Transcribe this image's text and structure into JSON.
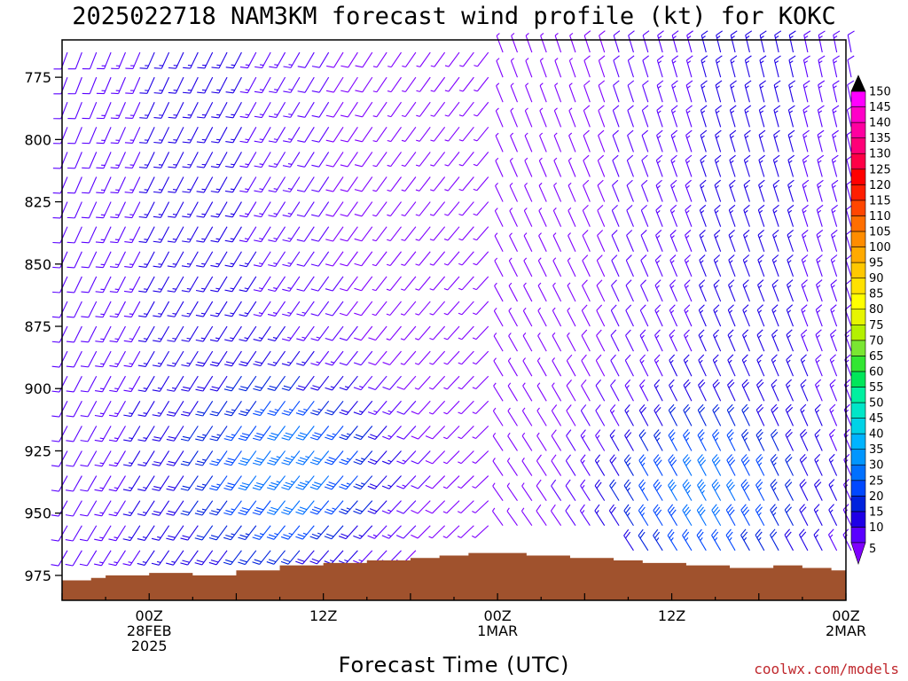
{
  "chart_data": {
    "type": "wind-barb profile (time-height cross section)",
    "title": "2025022718 NAM3KM forecast wind profile (kt) for KOKC",
    "xlabel": "Forecast Time (UTC)",
    "ylabel": "",
    "credit": "coolwx.com/models",
    "y_axis": {
      "unit": "hPa",
      "reversed": true,
      "range": [
        760,
        985
      ],
      "ticks": [
        775,
        800,
        825,
        850,
        875,
        900,
        925,
        950,
        975
      ],
      "tick_labels": [
        "775",
        "800",
        "825",
        "850",
        "875",
        "900",
        "925",
        "950",
        "975"
      ]
    },
    "x_axis": {
      "unit": "hours after 2025-02-27 18Z",
      "range": [
        0,
        54
      ],
      "ticks": [
        {
          "hour": 6,
          "label1": "00Z",
          "label2": "28FEB",
          "label3": "2025"
        },
        {
          "hour": 18,
          "label1": "12Z",
          "label2": "",
          "label3": ""
        },
        {
          "hour": 30,
          "label1": "00Z",
          "label2": "1MAR",
          "label3": ""
        },
        {
          "hour": 42,
          "label1": "12Z",
          "label2": "",
          "label3": ""
        },
        {
          "hour": 54,
          "label1": "00Z",
          "label2": "2MAR",
          "label3": ""
        }
      ]
    },
    "barbs": {
      "time_step_hours": 1,
      "hours": [
        0,
        54
      ],
      "pressure_levels_hPa": [
        765,
        775,
        785,
        795,
        805,
        815,
        825,
        835,
        845,
        855,
        865,
        875,
        885,
        895,
        905,
        915,
        925,
        935,
        945,
        955,
        965,
        975
      ],
      "note": "wind barbs at hourly steps; speed in kt (colour scale), direction shown by barb orientation"
    },
    "terrain_surface_hPa": [
      {
        "hour": 0,
        "p": 977
      },
      {
        "hour": 2,
        "p": 976
      },
      {
        "hour": 3,
        "p": 975
      },
      {
        "hour": 6,
        "p": 974
      },
      {
        "hour": 9,
        "p": 975
      },
      {
        "hour": 12,
        "p": 973
      },
      {
        "hour": 15,
        "p": 971
      },
      {
        "hour": 18,
        "p": 970
      },
      {
        "hour": 21,
        "p": 969
      },
      {
        "hour": 24,
        "p": 968
      },
      {
        "hour": 26,
        "p": 967
      },
      {
        "hour": 28,
        "p": 966
      },
      {
        "hour": 30,
        "p": 966
      },
      {
        "hour": 32,
        "p": 967
      },
      {
        "hour": 35,
        "p": 968
      },
      {
        "hour": 38,
        "p": 969
      },
      {
        "hour": 40,
        "p": 970
      },
      {
        "hour": 43,
        "p": 971
      },
      {
        "hour": 46,
        "p": 972
      },
      {
        "hour": 49,
        "p": 971
      },
      {
        "hour": 51,
        "p": 972
      },
      {
        "hour": 53,
        "p": 973
      },
      {
        "hour": 54,
        "p": 973
      }
    ],
    "colorbar": {
      "unit": "kt",
      "levels": [
        5,
        10,
        15,
        20,
        25,
        30,
        35,
        40,
        45,
        50,
        55,
        60,
        65,
        70,
        75,
        80,
        85,
        90,
        95,
        100,
        105,
        110,
        115,
        120,
        125,
        130,
        135,
        140,
        145,
        150
      ],
      "colors": [
        "#7f00ff",
        "#5a00ff",
        "#1f00e6",
        "#0022dd",
        "#0048ff",
        "#0070ff",
        "#0096ff",
        "#00b4ff",
        "#00d2e6",
        "#00e6c8",
        "#00f0a0",
        "#00e65a",
        "#32e632",
        "#7ae632",
        "#b4f000",
        "#e6f500",
        "#ffff00",
        "#ffe100",
        "#ffc800",
        "#ffaa00",
        "#ff8c00",
        "#ff6e00",
        "#ff4600",
        "#ff1e00",
        "#ff0000",
        "#ff0046",
        "#ff0078",
        "#ff00a0",
        "#ff00c8",
        "#ff00ff"
      ]
    }
  }
}
